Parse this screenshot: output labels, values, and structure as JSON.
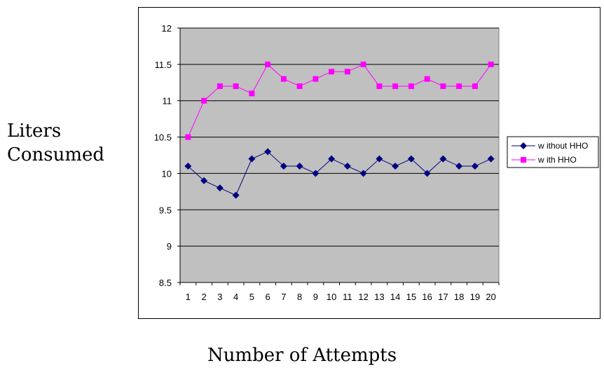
{
  "chart_data": {
    "type": "line",
    "ylabel_line1": "Liters",
    "ylabel_line2": "Consumed",
    "xlabel": "Number of Attempts",
    "x": [
      1,
      2,
      3,
      4,
      5,
      6,
      7,
      8,
      9,
      10,
      11,
      12,
      13,
      14,
      15,
      16,
      17,
      18,
      19,
      20
    ],
    "ylim": [
      8.5,
      12
    ],
    "yticks": [
      "8.5",
      "9",
      "9.5",
      "10",
      "10.5",
      "11",
      "11.5",
      "12"
    ],
    "grid": "horizontal",
    "plot_background": "#c0c0c0",
    "legend_position": "right",
    "series": [
      {
        "name": "w ithout HHO",
        "color": "#000080",
        "marker": "diamond",
        "values": [
          10.1,
          9.9,
          9.8,
          9.7,
          10.2,
          10.3,
          10.1,
          10.1,
          10.0,
          10.2,
          10.1,
          10.0,
          10.2,
          10.1,
          10.2,
          10.0,
          10.2,
          10.1,
          10.1,
          10.2
        ]
      },
      {
        "name": "w ith HHO",
        "color": "#ff00ff",
        "marker": "square",
        "values": [
          10.5,
          11.0,
          11.2,
          11.2,
          11.1,
          11.5,
          11.3,
          11.2,
          11.3,
          11.4,
          11.4,
          11.5,
          11.2,
          11.2,
          11.2,
          11.3,
          11.2,
          11.2,
          11.2,
          11.5
        ]
      }
    ]
  }
}
